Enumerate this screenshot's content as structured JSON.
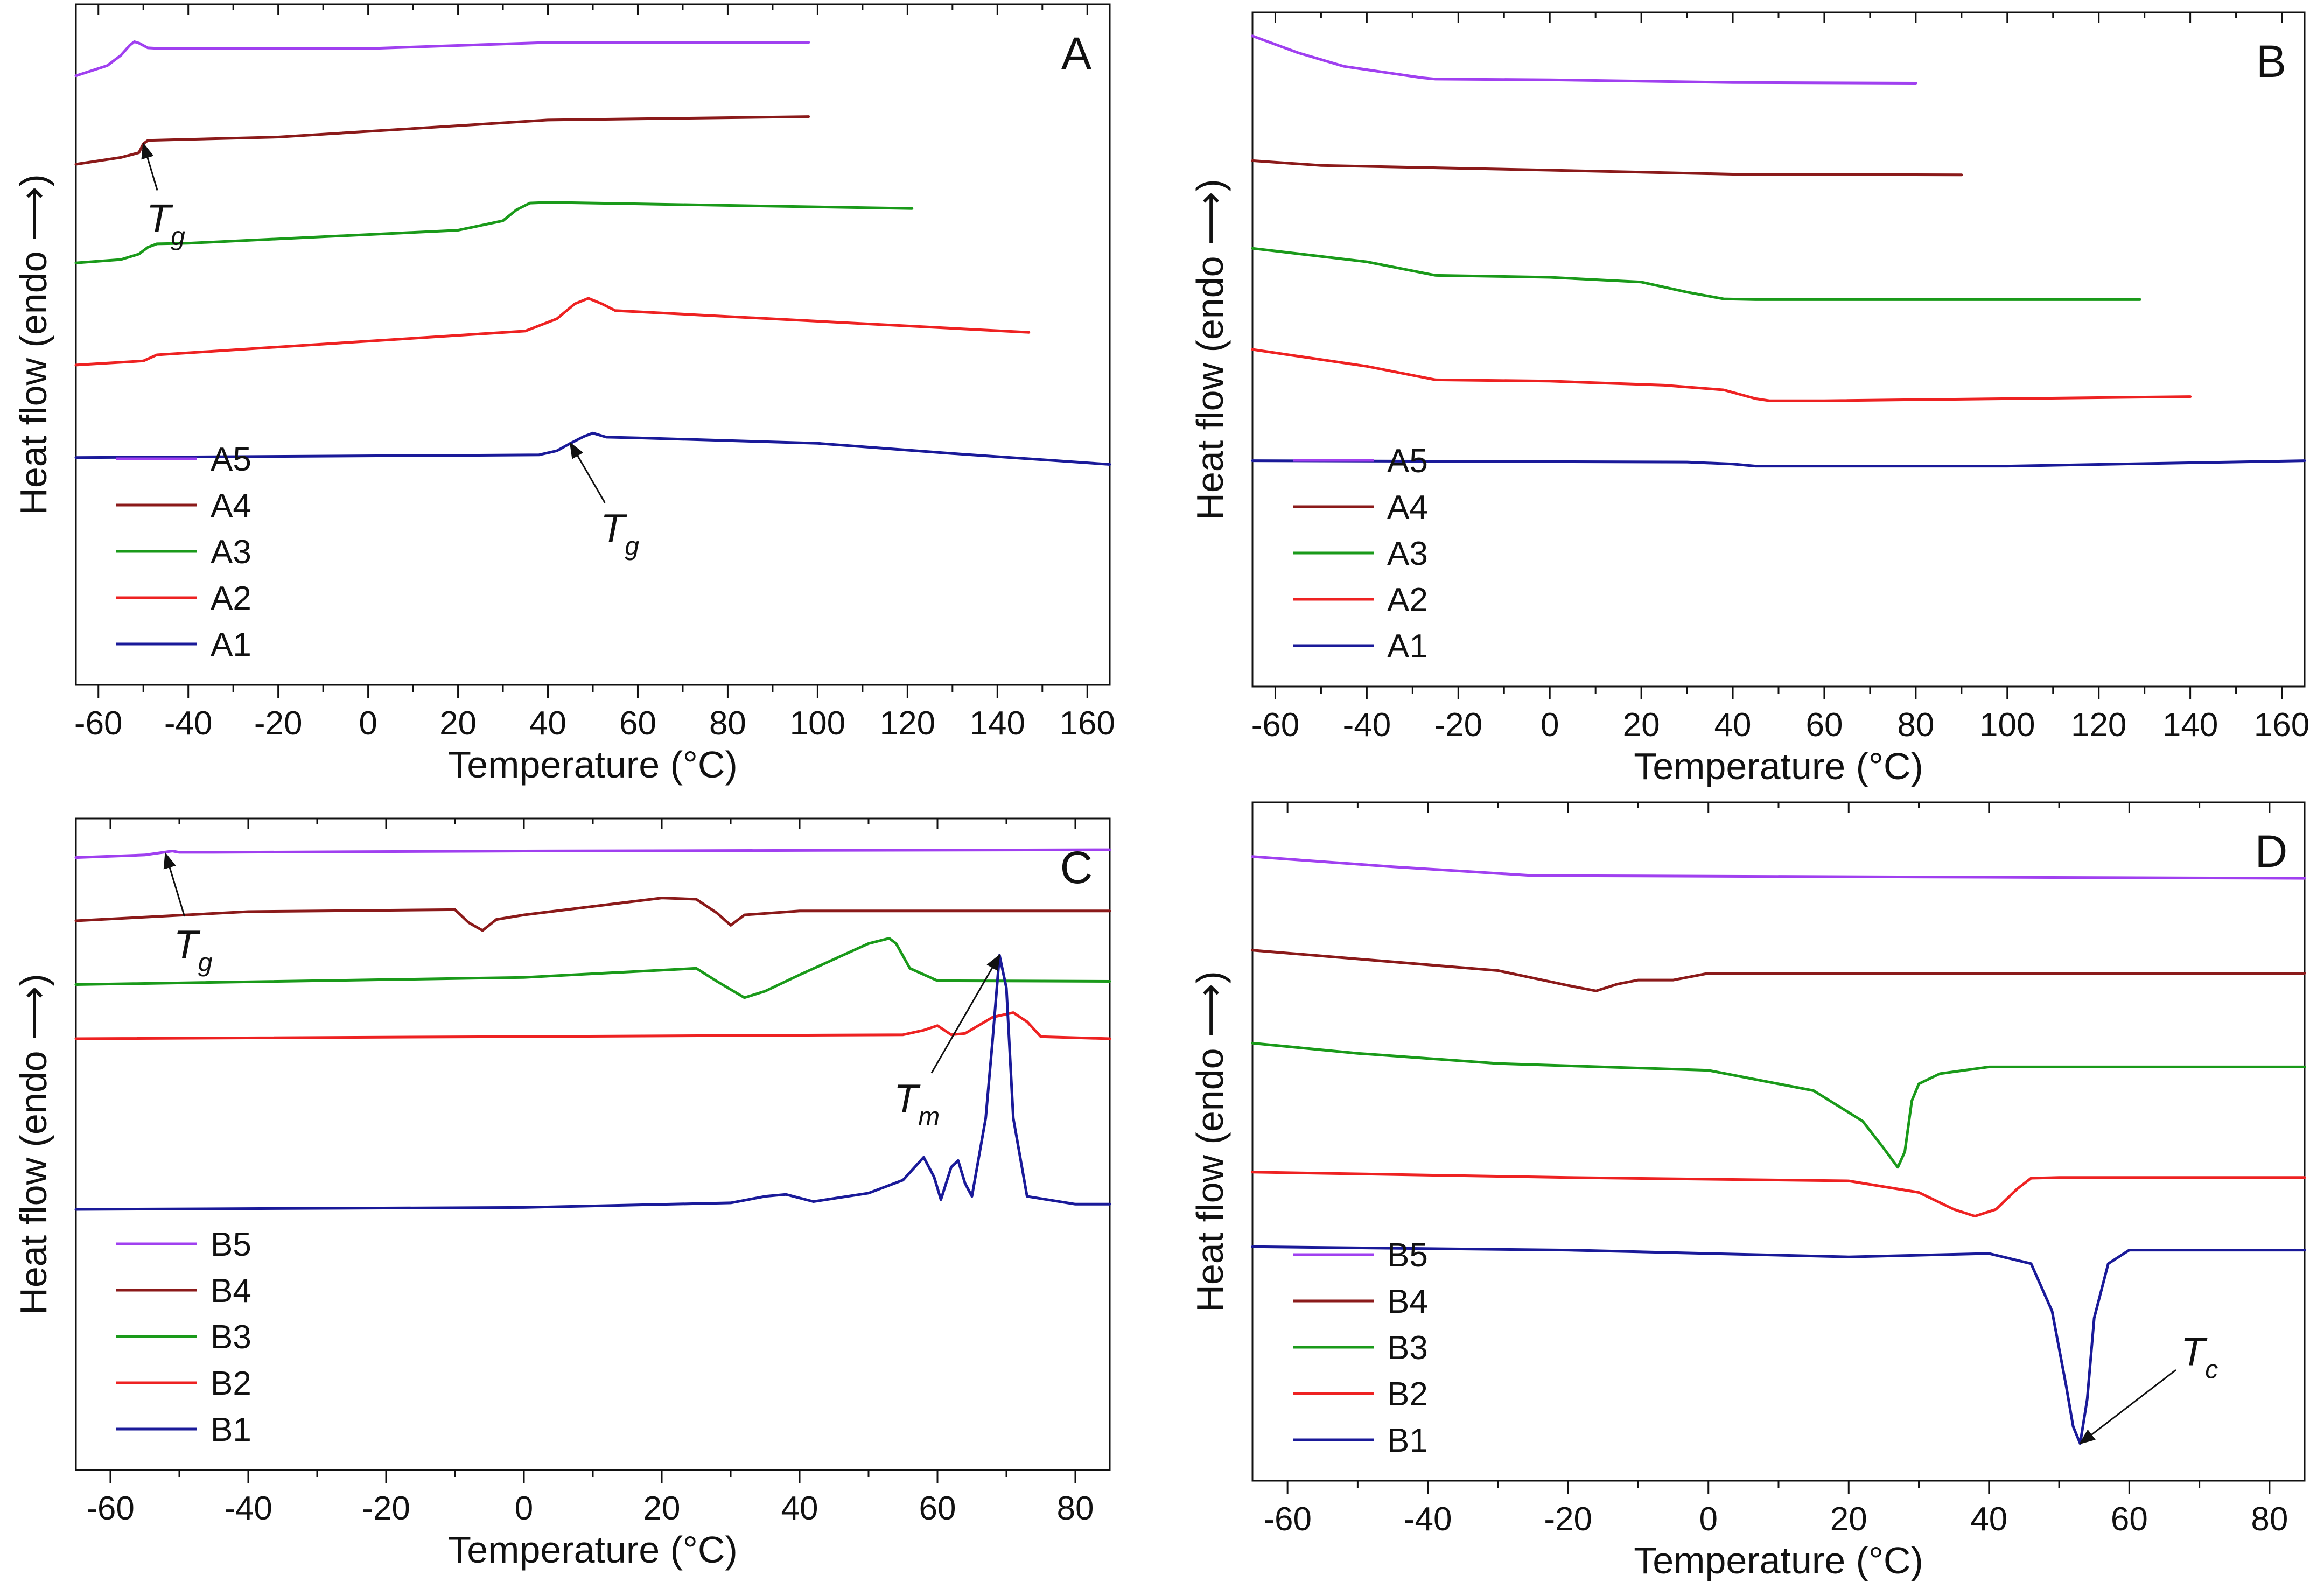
{
  "chart_data": [
    {
      "panel_label": "A",
      "type": "line",
      "xlabel": "Temperature (°C)",
      "ylabel": "Heat flow (endo ⟶)",
      "xlim": [
        -65,
        165
      ],
      "ylim": [
        0,
        100
      ],
      "x_ticks": [
        -60,
        -40,
        -20,
        0,
        20,
        40,
        60,
        80,
        100,
        120,
        140,
        160
      ],
      "y_ticks_shown": false,
      "legend_position": "bottom-left",
      "series": [
        {
          "name": "A5",
          "color": "#a040f0",
          "x": [
            -65,
            -58,
            -55,
            -53,
            -52,
            -51,
            -49,
            -46,
            0,
            40,
            98
          ],
          "y": [
            89.5,
            91,
            92.5,
            94,
            94.5,
            94.3,
            93.6,
            93.5,
            93.5,
            94.4,
            94.4
          ]
        },
        {
          "name": "A4",
          "color": "#8b1a1a",
          "x": [
            -65,
            -55,
            -51,
            -50,
            -49,
            -20,
            40,
            98
          ],
          "y": [
            76.5,
            77.5,
            78.2,
            79.5,
            80,
            80.5,
            83,
            83.5
          ]
        },
        {
          "name": "A3",
          "color": "#1a9a1a",
          "x": [
            -65,
            -55,
            -51,
            -49,
            -47,
            -40,
            20,
            30,
            33,
            36,
            40,
            121
          ],
          "y": [
            62,
            62.5,
            63.3,
            64.3,
            64.8,
            64.9,
            66.8,
            68.2,
            69.8,
            70.8,
            70.9,
            70
          ]
        },
        {
          "name": "A2",
          "color": "#ee2222",
          "x": [
            -65,
            -50,
            -47,
            35,
            42,
            46,
            49,
            52,
            55,
            147
          ],
          "y": [
            47,
            47.6,
            48.5,
            52,
            53.8,
            56,
            56.8,
            56,
            55,
            51.8
          ]
        },
        {
          "name": "A1",
          "color": "#1a1a99",
          "x": [
            -65,
            38,
            42,
            45,
            48,
            50,
            53,
            60,
            100,
            130,
            165
          ],
          "y": [
            33.4,
            33.8,
            34.4,
            35.5,
            36.5,
            37,
            36.4,
            36.3,
            35.5,
            34,
            32.4
          ]
        }
      ],
      "annotations": [
        {
          "text": "Tg",
          "main": "T",
          "sub": "g",
          "x": -45,
          "y": 68.5,
          "arrow_to": [
            -50,
            79.5
          ]
        },
        {
          "text": "Tg",
          "main": "T",
          "sub": "g",
          "x": 56,
          "y": 23,
          "arrow_to": [
            45,
            35.5
          ]
        }
      ]
    },
    {
      "panel_label": "B",
      "type": "line",
      "xlabel": "Temperature (°C)",
      "ylabel": "Heat flow (endo ⟶)",
      "xlim": [
        -65,
        165
      ],
      "ylim": [
        0,
        100
      ],
      "x_ticks": [
        -60,
        -40,
        -20,
        0,
        20,
        40,
        60,
        80,
        100,
        120,
        140,
        160
      ],
      "y_ticks_shown": false,
      "legend_position": "bottom-left",
      "series": [
        {
          "name": "A5",
          "color": "#a040f0",
          "x": [
            -65,
            -55,
            -45,
            -35,
            -28,
            -25,
            0,
            40,
            80
          ],
          "y": [
            96.5,
            94,
            92,
            91,
            90.3,
            90.1,
            90,
            89.6,
            89.5
          ]
        },
        {
          "name": "A4",
          "color": "#8b1a1a",
          "x": [
            -65,
            -50,
            0,
            40,
            90
          ],
          "y": [
            78,
            77.3,
            76.6,
            76,
            75.9
          ]
        },
        {
          "name": "A3",
          "color": "#1a9a1a",
          "x": [
            -65,
            -40,
            -25,
            0,
            20,
            30,
            38,
            45,
            129
          ],
          "y": [
            65,
            63,
            61,
            60.7,
            60,
            58.5,
            57.5,
            57.4,
            57.4
          ]
        },
        {
          "name": "A2",
          "color": "#ee2222",
          "x": [
            -65,
            -40,
            -25,
            0,
            25,
            38,
            45,
            48,
            60,
            140
          ],
          "y": [
            50,
            47.5,
            45.5,
            45.3,
            44.7,
            44,
            42.7,
            42.4,
            42.4,
            43
          ]
        },
        {
          "name": "A1",
          "color": "#1a1a99",
          "x": [
            -65,
            30,
            40,
            45,
            100,
            165
          ],
          "y": [
            33.5,
            33.3,
            33,
            32.7,
            32.7,
            33.5
          ]
        }
      ],
      "annotations": []
    },
    {
      "panel_label": "C",
      "type": "line",
      "xlabel": "Temperature (°C)",
      "ylabel": "Heat flow (endo ⟶)",
      "xlim": [
        -65,
        85
      ],
      "ylim": [
        0,
        100
      ],
      "x_ticks": [
        -60,
        -40,
        -20,
        0,
        20,
        40,
        60,
        80
      ],
      "y_ticks_shown": false,
      "legend_position": "bottom-left",
      "series": [
        {
          "name": "B5",
          "color": "#a040f0",
          "x": [
            -65,
            -55,
            -51,
            -50,
            -45,
            0,
            85
          ],
          "y": [
            94,
            94.4,
            95,
            94.8,
            94.8,
            95,
            95.2
          ]
        },
        {
          "name": "B4",
          "color": "#8b1a1a",
          "x": [
            -65,
            -40,
            -10,
            -8,
            -6,
            -4,
            0,
            20,
            25,
            28,
            30,
            32,
            40,
            85
          ],
          "y": [
            84.3,
            85.7,
            86,
            84,
            82.8,
            84.5,
            85.2,
            87.8,
            87.6,
            85.5,
            83.6,
            85.2,
            85.8,
            85.8
          ]
        },
        {
          "name": "B3",
          "color": "#1a9a1a",
          "x": [
            -65,
            0,
            25,
            28,
            32,
            35,
            40,
            50,
            53,
            54,
            56,
            60,
            85
          ],
          "y": [
            74.5,
            75.6,
            77,
            75,
            72.5,
            73.5,
            76,
            80.8,
            81.6,
            80.8,
            77,
            75.1,
            75
          ]
        },
        {
          "name": "B2",
          "color": "#ee2222",
          "x": [
            -65,
            55,
            58,
            60,
            62,
            64,
            68,
            71,
            73,
            75,
            85
          ],
          "y": [
            66.2,
            66.8,
            67.5,
            68.2,
            66.8,
            67,
            69.5,
            70.2,
            68.8,
            66.5,
            66.2
          ]
        },
        {
          "name": "B1",
          "color": "#1a1a99",
          "x": [
            -65,
            0,
            30,
            35,
            38,
            42,
            50,
            55,
            58,
            59.5,
            60.5,
            62,
            63,
            64,
            65,
            67,
            68,
            69,
            70,
            71,
            73,
            80,
            85
          ],
          "y": [
            40,
            40.3,
            41,
            42,
            42.3,
            41.2,
            42.5,
            44.5,
            48,
            45,
            41.5,
            46.5,
            47.5,
            44,
            42,
            54,
            66,
            79,
            74,
            54,
            42,
            40.8,
            40.8
          ]
        }
      ],
      "annotations": [
        {
          "text": "Tg",
          "main": "T",
          "sub": "g",
          "x": -48,
          "y": 80.6,
          "arrow_to": [
            -52,
            94.6
          ]
        },
        {
          "text": "Tm",
          "main": "T",
          "sub": "m",
          "x": 57,
          "y": 57,
          "arrow_to": [
            69,
            79
          ]
        }
      ]
    },
    {
      "panel_label": "D",
      "type": "line",
      "xlabel": "Temperature (°C)",
      "ylabel": "Heat flow (endo ⟶)",
      "xlim": [
        -65,
        85
      ],
      "ylim": [
        0,
        100
      ],
      "x_ticks": [
        -60,
        -40,
        -20,
        0,
        20,
        40,
        60,
        80
      ],
      "y_ticks_shown": false,
      "legend_position": "bottom-left",
      "series": [
        {
          "name": "B5",
          "color": "#a040f0",
          "x": [
            -65,
            -45,
            -25,
            85
          ],
          "y": [
            92,
            90.5,
            89.2,
            88.8
          ]
        },
        {
          "name": "B4",
          "color": "#8b1a1a",
          "x": [
            -65,
            -30,
            -20,
            -16,
            -13,
            -10,
            -5,
            0,
            85
          ],
          "y": [
            78.2,
            75.2,
            73,
            72.2,
            73.2,
            73.8,
            73.8,
            74.8,
            74.8
          ]
        },
        {
          "name": "B3",
          "color": "#1a9a1a",
          "x": [
            -65,
            -50,
            -30,
            0,
            15,
            22,
            25,
            27,
            28,
            29,
            30,
            33,
            40,
            85
          ],
          "y": [
            64.5,
            63,
            61.5,
            60.5,
            57.5,
            53,
            49,
            46.2,
            48.5,
            56,
            58.5,
            60,
            61,
            61
          ]
        },
        {
          "name": "B2",
          "color": "#ee2222",
          "x": [
            -65,
            -20,
            20,
            30,
            35,
            38,
            41,
            44,
            46,
            50,
            85
          ],
          "y": [
            45.5,
            44.7,
            44.2,
            42.5,
            40,
            39,
            40,
            43,
            44.6,
            44.7,
            44.7
          ]
        },
        {
          "name": "B1",
          "color": "#1a1a99",
          "x": [
            -65,
            -20,
            20,
            40,
            46,
            49,
            51,
            52,
            53,
            54,
            55,
            57,
            60,
            85
          ],
          "y": [
            34.5,
            34,
            33,
            33.5,
            32,
            25,
            14,
            8,
            5.5,
            12,
            24,
            32,
            34,
            34
          ]
        }
      ],
      "annotations": [
        {
          "text": "Tc",
          "main": "T",
          "sub": "c",
          "x": 70,
          "y": 19,
          "arrow_to": [
            53,
            5.5
          ]
        }
      ]
    }
  ]
}
